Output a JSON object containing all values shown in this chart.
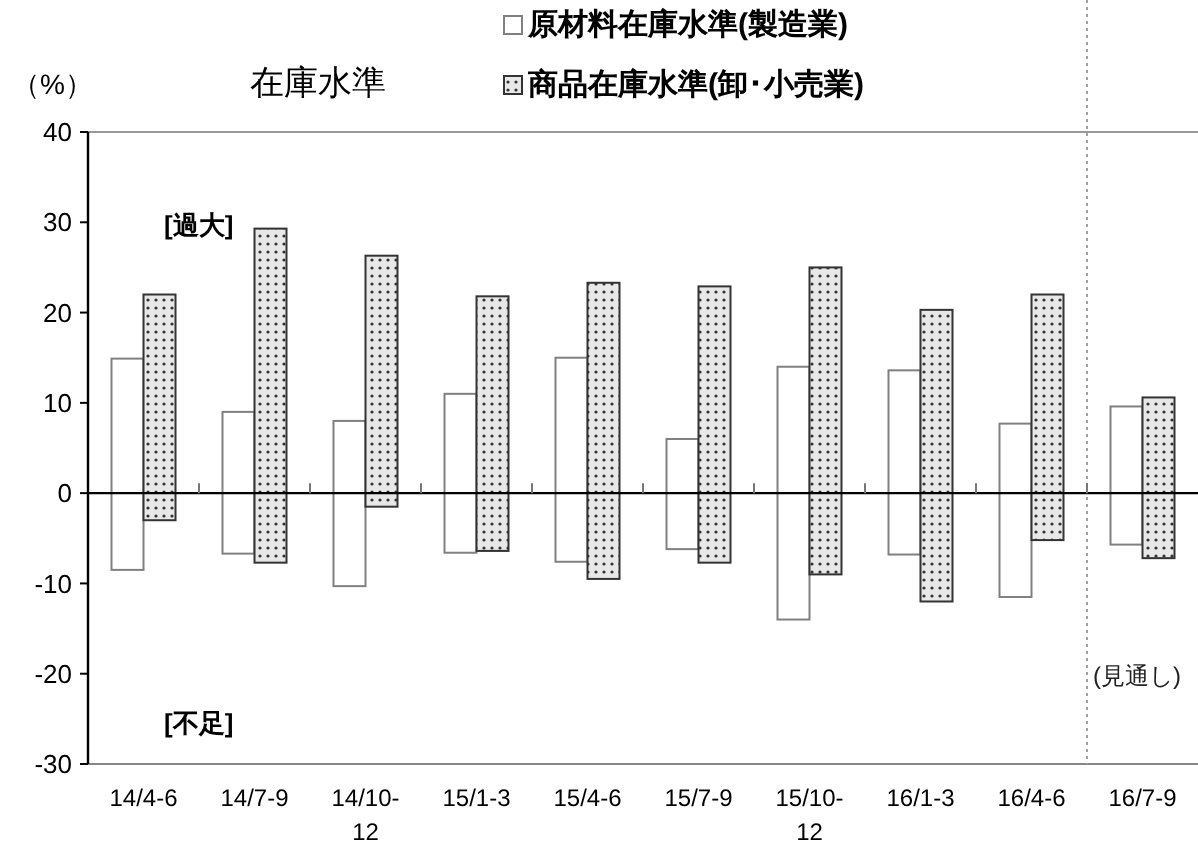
{
  "chart_data": {
    "type": "bar",
    "title": "在庫水準",
    "ylabel": "（%）",
    "categories": [
      "14/4-6",
      "14/7-9",
      "14/10-12",
      "15/1-3",
      "15/4-6",
      "15/7-9",
      "15/10-12",
      "16/1-3",
      "16/4-6",
      "16/7-9"
    ],
    "series": [
      {
        "name": "原材料在庫水準(製造業)",
        "color": "#808080",
        "base": [
          -8.5,
          -6.7,
          -10.3,
          -6.6,
          -7.6,
          -6.2,
          -14.0,
          -6.8,
          -11.5,
          -5.7
        ],
        "values": [
          23.4,
          15.7,
          18.3,
          17.6,
          22.6,
          12.2,
          28.0,
          20.4,
          19.2,
          15.3
        ]
      },
      {
        "name": "商品在庫水準(卸･小売業)",
        "color": "#333333",
        "base": [
          -3.0,
          -7.7,
          -1.5,
          -6.4,
          -9.5,
          -7.7,
          -9.0,
          -12.0,
          -5.2,
          -7.2
        ],
        "values": [
          25.0,
          37.0,
          27.8,
          28.2,
          32.8,
          30.6,
          34.0,
          32.3,
          27.2,
          17.8
        ]
      }
    ],
    "ylim": [
      -30,
      40
    ],
    "yticks": [
      -30,
      -20,
      -10,
      0,
      10,
      20,
      30,
      40
    ],
    "grid": false,
    "legend": "top",
    "ref_lines": [
      {
        "axis": "x",
        "value": "16/7-9",
        "label": "(見通し)",
        "line_style": "dotted",
        "color": "#a0a0a0"
      }
    ],
    "annotations": [
      "[過大]",
      "[不足]"
    ]
  }
}
